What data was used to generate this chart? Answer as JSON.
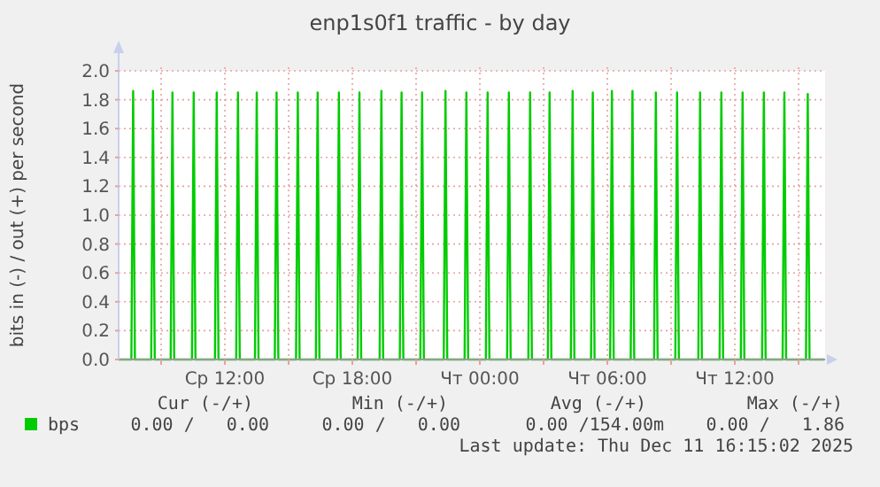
{
  "chart_data": {
    "type": "line",
    "title": "enp1s0f1 traffic - by day",
    "ylabel": "bits in (-) / out (+) per second",
    "annotations": [
      "Cur (-/+)",
      "Min (-/+)",
      "Avg (-/+)",
      "Max (-/+)",
      "0.00 /   0.00",
      "0.00 /   0.00",
      "0.00 /154.00m",
      "0.00 /   1.86",
      "Last update: Thu Dec 11 16:15:02 2025"
    ],
    "xlim": [
      "2025-12-10T07:00",
      "2025-12-11T16:15"
    ],
    "xticks": [
      {
        "value": "2025-12-10T09:00",
        "label": null
      },
      {
        "value": "2025-12-10T12:00",
        "label": "Ср 12:00"
      },
      {
        "value": "2025-12-10T15:00",
        "label": null
      },
      {
        "value": "2025-12-10T18:00",
        "label": "Ср 18:00"
      },
      {
        "value": "2025-12-10T21:00",
        "label": null
      },
      {
        "value": "2025-12-11T00:00",
        "label": "Чт 00:00"
      },
      {
        "value": "2025-12-11T03:00",
        "label": null
      },
      {
        "value": "2025-12-11T06:00",
        "label": "Чт 06:00"
      },
      {
        "value": "2025-12-11T09:00",
        "label": null
      },
      {
        "value": "2025-12-11T12:00",
        "label": "Чт 12:00"
      },
      {
        "value": "2025-12-11T15:00",
        "label": null
      }
    ],
    "ylim": [
      0,
      2
    ],
    "yticks": [
      {
        "value": 0,
        "label": "0.0"
      },
      0.2,
      0.4,
      0.6,
      0.8,
      {
        "value": 1,
        "label": "1.0"
      },
      1.2,
      1.4,
      1.6,
      1.8,
      {
        "value": 2,
        "label": "2.0"
      }
    ],
    "grid": true,
    "legend": "bottom left",
    "marker": "none",
    "line_style": "solid",
    "series": [
      {
        "name": "bps",
        "color": "#00cc00",
        "x": [
          "2025-12-10T07:00",
          "2025-12-10T07:36",
          "2025-12-10T07:41",
          "2025-12-10T07:46",
          "2025-12-10T08:32",
          "2025-12-10T08:37",
          "2025-12-10T08:42",
          "2025-12-10T09:27",
          "2025-12-10T09:32",
          "2025-12-10T09:37",
          "2025-12-10T10:27",
          "2025-12-10T10:32",
          "2025-12-10T10:37",
          "2025-12-10T11:32",
          "2025-12-10T11:37",
          "2025-12-10T11:42",
          "2025-12-10T12:32",
          "2025-12-10T12:37",
          "2025-12-10T12:42",
          "2025-12-10T13:25",
          "2025-12-10T13:30",
          "2025-12-10T13:35",
          "2025-12-10T14:21",
          "2025-12-10T14:26",
          "2025-12-10T14:31",
          "2025-12-10T15:21",
          "2025-12-10T15:26",
          "2025-12-10T15:31",
          "2025-12-10T16:17",
          "2025-12-10T16:22",
          "2025-12-10T16:27",
          "2025-12-10T17:17",
          "2025-12-10T17:22",
          "2025-12-10T17:27",
          "2025-12-10T18:15",
          "2025-12-10T18:20",
          "2025-12-10T18:25",
          "2025-12-10T19:17",
          "2025-12-10T19:22",
          "2025-12-10T19:27",
          "2025-12-10T20:14",
          "2025-12-10T20:19",
          "2025-12-10T20:24",
          "2025-12-10T21:12",
          "2025-12-10T21:17",
          "2025-12-10T21:22",
          "2025-12-10T22:18",
          "2025-12-10T22:23",
          "2025-12-10T22:28",
          "2025-12-10T23:17",
          "2025-12-10T23:22",
          "2025-12-10T23:27",
          "2025-12-11T00:17",
          "2025-12-11T00:22",
          "2025-12-11T00:27",
          "2025-12-11T01:17",
          "2025-12-11T01:22",
          "2025-12-11T01:27",
          "2025-12-11T02:17",
          "2025-12-11T02:22",
          "2025-12-11T02:27",
          "2025-12-11T03:12",
          "2025-12-11T03:17",
          "2025-12-11T03:22",
          "2025-12-11T04:17",
          "2025-12-11T04:22",
          "2025-12-11T04:27",
          "2025-12-11T05:14",
          "2025-12-11T05:19",
          "2025-12-11T05:24",
          "2025-12-11T06:08",
          "2025-12-11T06:13",
          "2025-12-11T06:18",
          "2025-12-11T07:06",
          "2025-12-11T07:11",
          "2025-12-11T07:16",
          "2025-12-11T08:12",
          "2025-12-11T08:17",
          "2025-12-11T08:22",
          "2025-12-11T09:12",
          "2025-12-11T09:17",
          "2025-12-11T09:22",
          "2025-12-11T10:17",
          "2025-12-11T10:22",
          "2025-12-11T10:27",
          "2025-12-11T11:17",
          "2025-12-11T11:22",
          "2025-12-11T11:27",
          "2025-12-11T12:17",
          "2025-12-11T12:22",
          "2025-12-11T12:27",
          "2025-12-11T13:17",
          "2025-12-11T13:22",
          "2025-12-11T13:27",
          "2025-12-11T14:15",
          "2025-12-11T14:20",
          "2025-12-11T14:25",
          "2025-12-11T15:21",
          "2025-12-11T15:26",
          "2025-12-11T15:31",
          "2025-12-11T16:12"
        ],
        "values": [
          0,
          0,
          1.86,
          0,
          0,
          1.86,
          0,
          0,
          1.85,
          0,
          0,
          1.85,
          0,
          0,
          1.85,
          0,
          0,
          1.85,
          0,
          0,
          1.85,
          0,
          0,
          1.85,
          0,
          0,
          1.85,
          0,
          0,
          1.85,
          0,
          0,
          1.85,
          0,
          0,
          1.85,
          0,
          0,
          1.86,
          0,
          0,
          1.85,
          0,
          0,
          1.85,
          0,
          0,
          1.86,
          0,
          0,
          1.85,
          0,
          0,
          1.85,
          0,
          0,
          1.85,
          0,
          0,
          1.85,
          0,
          0,
          1.85,
          0,
          0,
          1.86,
          0,
          0,
          1.85,
          0,
          0,
          1.86,
          0,
          0,
          1.86,
          0,
          0,
          1.85,
          0,
          0,
          1.85,
          0,
          0,
          1.85,
          0,
          0,
          1.85,
          0,
          0,
          1.85,
          0,
          0,
          1.85,
          0,
          0,
          1.85,
          0,
          0,
          1.84,
          0,
          0
        ]
      }
    ]
  }
}
